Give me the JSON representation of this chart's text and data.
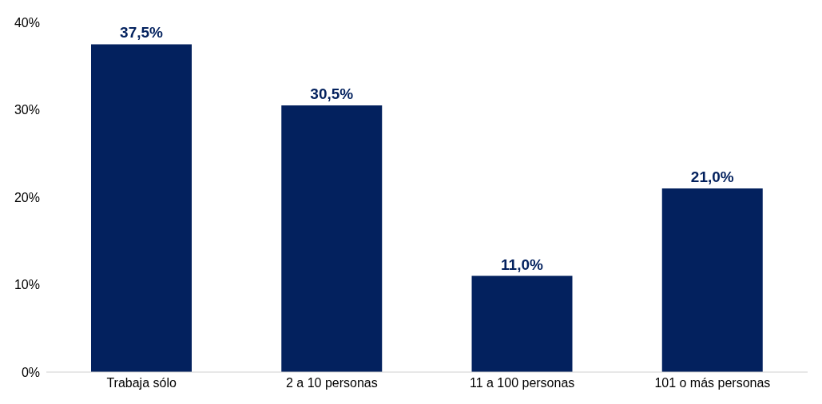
{
  "chart_data": {
    "type": "bar",
    "categories": [
      "Trabaja sólo",
      "2 a 10 personas",
      "11 a 100 personas",
      "101 o más personas"
    ],
    "values": [
      37.5,
      30.5,
      11.0,
      21.0
    ],
    "color": "#03215e",
    "value_labels": [
      "37,5%",
      "30,5%",
      "11,0%",
      "21,0%"
    ],
    "ylim": [
      0,
      40
    ],
    "yticks": [
      {
        "value": 0,
        "label": "0%"
      },
      {
        "value": 10,
        "label": "10%"
      },
      {
        "value": 20,
        "label": "20%"
      },
      {
        "value": 30,
        "label": "30%"
      },
      {
        "value": 40,
        "label": "40%"
      }
    ],
    "grid": false,
    "legend": false
  }
}
